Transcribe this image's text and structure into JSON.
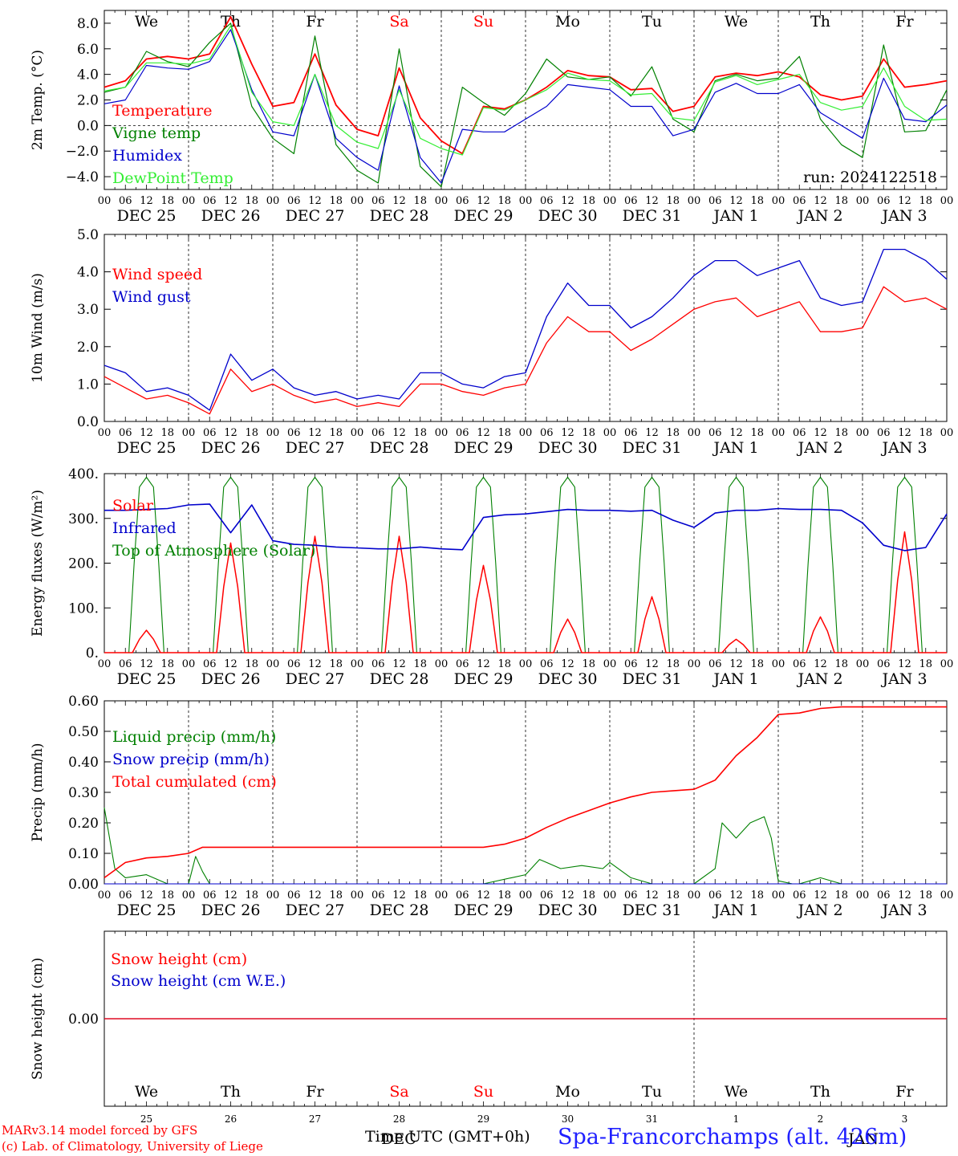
{
  "run_label": "run: 2024122518",
  "weekdays": [
    "We",
    "Th",
    "Fr",
    "Sa",
    "Su",
    "Mo",
    "Tu",
    "We",
    "Th",
    "Fr"
  ],
  "weekday_colors": [
    "#000000",
    "#000000",
    "#000000",
    "#ff0000",
    "#ff0000",
    "#000000",
    "#000000",
    "#000000",
    "#000000",
    "#000000"
  ],
  "date_labels": [
    "DEC 25",
    "DEC 26",
    "DEC 27",
    "DEC 28",
    "DEC 29",
    "DEC 30",
    "DEC 31",
    "JAN  1",
    "JAN  2",
    "JAN  3"
  ],
  "day_numbers": [
    "25",
    "26",
    "27",
    "28",
    "29",
    "30",
    "31",
    "1",
    "2",
    "3"
  ],
  "hour_ticks": [
    "00",
    "06",
    "12",
    "18"
  ],
  "last_hour_tick": "00",
  "x_axis_title": "Time UTC (GMT+0h)",
  "x_axis_overlap": "DEC",
  "x_axis_overlap2": "JAN",
  "station": "Spa-Francorchamps (alt. 426m)",
  "credits": [
    "MARv3.14 model forced by GFS",
    "(c) Lab. of Climatology, University of Liege"
  ],
  "chart_data": [
    {
      "type": "line",
      "id": "temperature",
      "ylabel": "2m Temp. (°C)",
      "ylim": [
        -5,
        9
      ],
      "yticks": [
        8,
        6,
        4,
        2,
        0,
        -2,
        -4
      ],
      "ytick_labels": [
        "8.0",
        "6.0",
        "4.0",
        "2.0",
        "0.0",
        "−2.0",
        "−4.0"
      ],
      "zero_line": true,
      "x_unit": "hours since DEC 25 00 UTC",
      "series": [
        {
          "name": "Temperature",
          "color": "#ff0000",
          "x": [
            0,
            6,
            12,
            18,
            24,
            30,
            36,
            42,
            48,
            54,
            60,
            66,
            72,
            78,
            84,
            90,
            96,
            102,
            108,
            114,
            120,
            126,
            132,
            138,
            144,
            150,
            156,
            162,
            168,
            174,
            180,
            186,
            192,
            198,
            204,
            210,
            216,
            222,
            228,
            234,
            240
          ],
          "values": [
            3.0,
            3.5,
            5.2,
            5.4,
            5.2,
            5.6,
            8.5,
            4.8,
            1.5,
            1.8,
            5.6,
            1.6,
            -0.3,
            -0.8,
            4.5,
            0.6,
            -1.2,
            -2.2,
            1.5,
            1.3,
            2.0,
            3.0,
            4.3,
            3.9,
            3.8,
            2.8,
            2.9,
            1.1,
            1.5,
            3.8,
            4.1,
            3.9,
            4.2,
            3.8,
            2.4,
            2.0,
            2.3,
            5.2,
            3.0,
            3.2,
            3.5
          ]
        },
        {
          "name": "Vigne temp",
          "color": "#008000",
          "x": [
            0,
            6,
            12,
            18,
            24,
            30,
            36,
            42,
            48,
            54,
            60,
            66,
            72,
            78,
            84,
            90,
            96,
            102,
            108,
            114,
            120,
            126,
            132,
            138,
            144,
            150,
            156,
            162,
            168,
            174,
            180,
            186,
            192,
            198,
            204,
            210,
            216,
            222,
            228,
            234,
            240
          ],
          "values": [
            2.6,
            3.0,
            5.8,
            5.0,
            4.6,
            6.5,
            8.0,
            1.5,
            -1.0,
            -2.2,
            7.0,
            -1.5,
            -3.5,
            -4.5,
            6.0,
            -3.2,
            -4.8,
            3.0,
            1.8,
            0.8,
            2.5,
            5.2,
            3.8,
            3.6,
            3.8,
            2.3,
            4.6,
            0.5,
            -0.5,
            3.5,
            4.0,
            3.5,
            3.7,
            5.4,
            0.5,
            -1.5,
            -2.5,
            6.3,
            -0.5,
            -0.4,
            2.8
          ]
        },
        {
          "name": "Humidex",
          "color": "#0000cc",
          "x": [
            0,
            6,
            12,
            18,
            24,
            30,
            36,
            42,
            48,
            54,
            60,
            66,
            72,
            78,
            84,
            90,
            96,
            102,
            108,
            114,
            120,
            126,
            132,
            138,
            144,
            150,
            156,
            162,
            168,
            174,
            180,
            186,
            192,
            198,
            204,
            210,
            216,
            222,
            228,
            234,
            240
          ],
          "values": [
            1.7,
            2.0,
            4.7,
            4.5,
            4.4,
            5.0,
            7.5,
            2.8,
            -0.5,
            -0.8,
            4.0,
            -1.0,
            -2.5,
            -3.5,
            3.1,
            -2.5,
            -4.5,
            -0.3,
            -0.5,
            -0.5,
            0.5,
            1.5,
            3.2,
            3.0,
            2.8,
            1.5,
            1.5,
            -0.8,
            -0.3,
            2.6,
            3.3,
            2.5,
            2.5,
            3.2,
            1.0,
            0.0,
            -1.0,
            3.7,
            0.5,
            0.3,
            1.6
          ]
        },
        {
          "name": "DewPoint Temp",
          "color": "#33ee33",
          "x": [
            0,
            6,
            12,
            18,
            24,
            30,
            36,
            42,
            48,
            54,
            60,
            66,
            72,
            78,
            84,
            90,
            96,
            102,
            108,
            114,
            120,
            126,
            132,
            138,
            144,
            150,
            156,
            162,
            168,
            174,
            180,
            186,
            192,
            198,
            204,
            210,
            216,
            222,
            228,
            234,
            240
          ],
          "values": [
            2.7,
            3.0,
            4.9,
            4.9,
            4.8,
            5.2,
            7.8,
            2.6,
            0.3,
            0.0,
            4.0,
            0.0,
            -1.3,
            -1.8,
            2.8,
            -1.0,
            -1.8,
            -2.3,
            1.4,
            1.2,
            2.0,
            2.8,
            4.1,
            3.6,
            3.5,
            2.4,
            2.5,
            0.6,
            0.4,
            3.4,
            3.9,
            3.2,
            3.6,
            4.0,
            1.8,
            1.2,
            1.5,
            4.5,
            1.5,
            0.4,
            0.5
          ]
        }
      ]
    },
    {
      "type": "line",
      "id": "wind",
      "ylabel": "10m Wind (m/s)",
      "ylim": [
        0,
        5
      ],
      "yticks": [
        5,
        4,
        3,
        2,
        1,
        0
      ],
      "ytick_labels": [
        "5.0",
        "4.0",
        "3.0",
        "2.0",
        "1.0",
        "0.0"
      ],
      "x_unit": "hours since DEC 25 00 UTC",
      "series": [
        {
          "name": "Wind speed",
          "color": "#ff0000",
          "x": [
            0,
            6,
            12,
            18,
            24,
            30,
            36,
            42,
            48,
            54,
            60,
            66,
            72,
            78,
            84,
            90,
            96,
            102,
            108,
            114,
            120,
            126,
            132,
            138,
            144,
            150,
            156,
            162,
            168,
            174,
            180,
            186,
            192,
            198,
            204,
            210,
            216,
            222,
            228,
            234,
            240
          ],
          "values": [
            1.2,
            0.9,
            0.6,
            0.7,
            0.5,
            0.2,
            1.4,
            0.8,
            1.0,
            0.7,
            0.5,
            0.6,
            0.4,
            0.5,
            0.4,
            1.0,
            1.0,
            0.8,
            0.7,
            0.9,
            1.0,
            2.1,
            2.8,
            2.4,
            2.4,
            1.9,
            2.2,
            2.6,
            3.0,
            3.2,
            3.3,
            2.8,
            3.0,
            3.2,
            2.4,
            2.4,
            2.5,
            3.6,
            3.2,
            3.3,
            3.0
          ]
        },
        {
          "name": "Wind gust",
          "color": "#0000cc",
          "x": [
            0,
            6,
            12,
            18,
            24,
            30,
            36,
            42,
            48,
            54,
            60,
            66,
            72,
            78,
            84,
            90,
            96,
            102,
            108,
            114,
            120,
            126,
            132,
            138,
            144,
            150,
            156,
            162,
            168,
            174,
            180,
            186,
            192,
            198,
            204,
            210,
            216,
            222,
            228,
            234,
            240
          ],
          "values": [
            1.5,
            1.3,
            0.8,
            0.9,
            0.7,
            0.3,
            1.8,
            1.1,
            1.4,
            0.9,
            0.7,
            0.8,
            0.6,
            0.7,
            0.6,
            1.3,
            1.3,
            1.0,
            0.9,
            1.2,
            1.3,
            2.8,
            3.7,
            3.1,
            3.1,
            2.5,
            2.8,
            3.3,
            3.9,
            4.3,
            4.3,
            3.9,
            4.1,
            4.3,
            3.3,
            3.1,
            3.2,
            4.6,
            4.6,
            4.3,
            3.8
          ]
        }
      ]
    },
    {
      "type": "line",
      "id": "energy",
      "ylabel": "Energy fluxes (W/m²)",
      "ylim": [
        0,
        400
      ],
      "yticks": [
        400,
        300,
        200,
        100,
        0
      ],
      "ytick_labels": [
        "400.",
        "300.",
        "200.",
        "100.",
        "0."
      ],
      "x_unit": "hours since DEC 25 00 UTC",
      "series": [
        {
          "name": "Solar",
          "color": "#ff0000",
          "peaks": [
            50,
            245,
            260,
            260,
            195,
            75,
            125,
            30,
            80,
            270
          ]
        },
        {
          "name": "Infrared",
          "color": "#0000cc",
          "x": [
            0,
            6,
            12,
            18,
            24,
            30,
            36,
            42,
            48,
            54,
            60,
            66,
            72,
            78,
            84,
            90,
            96,
            102,
            108,
            114,
            120,
            126,
            132,
            138,
            144,
            150,
            156,
            162,
            168,
            174,
            180,
            186,
            192,
            198,
            204,
            210,
            216,
            222,
            228,
            234,
            240
          ],
          "values": [
            318,
            318,
            320,
            322,
            330,
            332,
            268,
            330,
            250,
            242,
            240,
            236,
            234,
            232,
            232,
            236,
            232,
            230,
            302,
            308,
            310,
            315,
            320,
            318,
            318,
            316,
            318,
            296,
            280,
            312,
            318,
            318,
            322,
            320,
            320,
            318,
            290,
            240,
            228,
            235,
            310
          ]
        },
        {
          "name": "Top of Atmosphere (Solar)",
          "color": "#008000",
          "peak": 392
        }
      ]
    },
    {
      "type": "line",
      "id": "precip",
      "ylabel": "Precip (mm/h)",
      "ylim": [
        0,
        0.6
      ],
      "yticks": [
        0.6,
        0.5,
        0.4,
        0.3,
        0.2,
        0.1,
        0.0
      ],
      "ytick_labels": [
        "0.60",
        "0.50",
        "0.40",
        "0.30",
        "0.20",
        "0.10",
        "0.00"
      ],
      "x_unit": "hours since DEC 25 00 UTC",
      "series": [
        {
          "name": "Liquid precip (mm/h)",
          "color": "#008000",
          "x": [
            0,
            3,
            6,
            12,
            18,
            24,
            26,
            28,
            30,
            36,
            72,
            108,
            116,
            120,
            124,
            126,
            130,
            136,
            142,
            144,
            150,
            156,
            168,
            174,
            176,
            180,
            184,
            188,
            190,
            192,
            196,
            198,
            204,
            210,
            240
          ],
          "values": [
            0.25,
            0.05,
            0.02,
            0.03,
            0.0,
            0.0,
            0.09,
            0.04,
            0.0,
            0.0,
            0.0,
            0.0,
            0.02,
            0.03,
            0.08,
            0.07,
            0.05,
            0.06,
            0.05,
            0.07,
            0.02,
            0.0,
            0.0,
            0.05,
            0.2,
            0.15,
            0.2,
            0.22,
            0.15,
            0.01,
            0.0,
            0.0,
            0.02,
            0.0,
            0.0
          ]
        },
        {
          "name": "Snow precip (mm/h)",
          "color": "#0000cc",
          "x": [
            0,
            240
          ],
          "values": [
            0.0,
            0.0
          ]
        },
        {
          "name": "Total cumulated (cm)",
          "color": "#ff0000",
          "x": [
            0,
            6,
            12,
            18,
            24,
            28,
            36,
            72,
            108,
            114,
            120,
            126,
            132,
            138,
            144,
            150,
            156,
            162,
            168,
            174,
            180,
            186,
            192,
            198,
            204,
            210,
            216,
            228,
            240
          ],
          "values": [
            0.02,
            0.07,
            0.085,
            0.09,
            0.1,
            0.12,
            0.12,
            0.12,
            0.12,
            0.13,
            0.15,
            0.185,
            0.215,
            0.24,
            0.265,
            0.285,
            0.3,
            0.305,
            0.31,
            0.34,
            0.42,
            0.48,
            0.555,
            0.56,
            0.575,
            0.58,
            0.58,
            0.58,
            0.58
          ]
        }
      ]
    },
    {
      "type": "line",
      "id": "snow",
      "ylabel": "Snow height (cm)",
      "ylim": [
        -1,
        1
      ],
      "yticks": [
        0
      ],
      "ytick_labels": [
        "0.00"
      ],
      "x_unit": "hours since DEC 25 00 UTC",
      "series": [
        {
          "name": "Snow height (cm)",
          "color": "#ff0000",
          "x": [
            0,
            240
          ],
          "values": [
            0,
            0
          ]
        },
        {
          "name": "Snow height (cm W.E.)",
          "color": "#0000cc",
          "x": [
            0,
            240
          ],
          "values": [
            0,
            0
          ]
        }
      ]
    }
  ]
}
